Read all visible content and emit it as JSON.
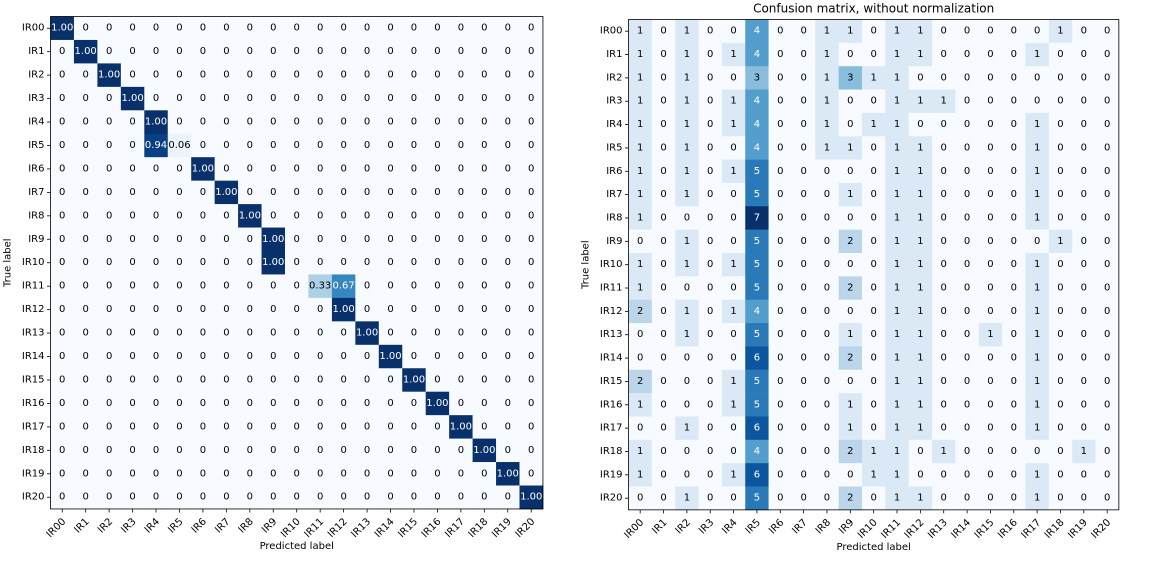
{
  "chart_data": [
    {
      "type": "heatmap",
      "title": "",
      "xlabel": "Predicted label",
      "ylabel": "True label",
      "labels": [
        "IR00",
        "IR1",
        "IR2",
        "IR3",
        "IR4",
        "IR5",
        "IR6",
        "IR7",
        "IR8",
        "IR9",
        "IR10",
        "IR11",
        "IR12",
        "IR13",
        "IR14",
        "IR15",
        "IR16",
        "IR17",
        "IR18",
        "IR19",
        "IR20"
      ],
      "color_scale": {
        "low": "#f7fbff",
        "high": "#08306b"
      },
      "vmax": 1.0,
      "value_format": "normalized",
      "matrix": [
        [
          1,
          0,
          0,
          0,
          0,
          0,
          0,
          0,
          0,
          0,
          0,
          0,
          0,
          0,
          0,
          0,
          0,
          0,
          0,
          0,
          0
        ],
        [
          0,
          1,
          0,
          0,
          0,
          0,
          0,
          0,
          0,
          0,
          0,
          0,
          0,
          0,
          0,
          0,
          0,
          0,
          0,
          0,
          0
        ],
        [
          0,
          0,
          1,
          0,
          0,
          0,
          0,
          0,
          0,
          0,
          0,
          0,
          0,
          0,
          0,
          0,
          0,
          0,
          0,
          0,
          0
        ],
        [
          0,
          0,
          0,
          1,
          0,
          0,
          0,
          0,
          0,
          0,
          0,
          0,
          0,
          0,
          0,
          0,
          0,
          0,
          0,
          0,
          0
        ],
        [
          0,
          0,
          0,
          0,
          1,
          0,
          0,
          0,
          0,
          0,
          0,
          0,
          0,
          0,
          0,
          0,
          0,
          0,
          0,
          0,
          0
        ],
        [
          0,
          0,
          0,
          0,
          0.94,
          0.06,
          0,
          0,
          0,
          0,
          0,
          0,
          0,
          0,
          0,
          0,
          0,
          0,
          0,
          0,
          0
        ],
        [
          0,
          0,
          0,
          0,
          0,
          0,
          1,
          0,
          0,
          0,
          0,
          0,
          0,
          0,
          0,
          0,
          0,
          0,
          0,
          0,
          0
        ],
        [
          0,
          0,
          0,
          0,
          0,
          0,
          0,
          1,
          0,
          0,
          0,
          0,
          0,
          0,
          0,
          0,
          0,
          0,
          0,
          0,
          0
        ],
        [
          0,
          0,
          0,
          0,
          0,
          0,
          0,
          0,
          1,
          0,
          0,
          0,
          0,
          0,
          0,
          0,
          0,
          0,
          0,
          0,
          0
        ],
        [
          0,
          0,
          0,
          0,
          0,
          0,
          0,
          0,
          0,
          1,
          0,
          0,
          0,
          0,
          0,
          0,
          0,
          0,
          0,
          0,
          0
        ],
        [
          0,
          0,
          0,
          0,
          0,
          0,
          0,
          0,
          0,
          1,
          0,
          0,
          0,
          0,
          0,
          0,
          0,
          0,
          0,
          0,
          0
        ],
        [
          0,
          0,
          0,
          0,
          0,
          0,
          0,
          0,
          0,
          0,
          0,
          0.33,
          0.67,
          0,
          0,
          0,
          0,
          0,
          0,
          0,
          0
        ],
        [
          0,
          0,
          0,
          0,
          0,
          0,
          0,
          0,
          0,
          0,
          0,
          0,
          1,
          0,
          0,
          0,
          0,
          0,
          0,
          0,
          0
        ],
        [
          0,
          0,
          0,
          0,
          0,
          0,
          0,
          0,
          0,
          0,
          0,
          0,
          0,
          1,
          0,
          0,
          0,
          0,
          0,
          0,
          0
        ],
        [
          0,
          0,
          0,
          0,
          0,
          0,
          0,
          0,
          0,
          0,
          0,
          0,
          0,
          0,
          1,
          0,
          0,
          0,
          0,
          0,
          0
        ],
        [
          0,
          0,
          0,
          0,
          0,
          0,
          0,
          0,
          0,
          0,
          0,
          0,
          0,
          0,
          0,
          1,
          0,
          0,
          0,
          0,
          0
        ],
        [
          0,
          0,
          0,
          0,
          0,
          0,
          0,
          0,
          0,
          0,
          0,
          0,
          0,
          0,
          0,
          0,
          1,
          0,
          0,
          0,
          0
        ],
        [
          0,
          0,
          0,
          0,
          0,
          0,
          0,
          0,
          0,
          0,
          0,
          0,
          0,
          0,
          0,
          0,
          0,
          1,
          0,
          0,
          0
        ],
        [
          0,
          0,
          0,
          0,
          0,
          0,
          0,
          0,
          0,
          0,
          0,
          0,
          0,
          0,
          0,
          0,
          0,
          0,
          1,
          0,
          0
        ],
        [
          0,
          0,
          0,
          0,
          0,
          0,
          0,
          0,
          0,
          0,
          0,
          0,
          0,
          0,
          0,
          0,
          0,
          0,
          0,
          1,
          0
        ],
        [
          0,
          0,
          0,
          0,
          0,
          0,
          0,
          0,
          0,
          0,
          0,
          0,
          0,
          0,
          0,
          0,
          0,
          0,
          0,
          0,
          1
        ]
      ]
    },
    {
      "type": "heatmap",
      "title": "Confusion matrix, without normalization",
      "xlabel": "Predicted label",
      "ylabel": "True label",
      "labels": [
        "IR00",
        "IR1",
        "IR2",
        "IR3",
        "IR4",
        "IR5",
        "IR6",
        "IR7",
        "IR8",
        "IR9",
        "IR10",
        "IR11",
        "IR12",
        "IR13",
        "IR14",
        "IR15",
        "IR16",
        "IR17",
        "IR18",
        "IR19",
        "IR20"
      ],
      "color_scale": {
        "low": "#f7fbff",
        "high": "#08306b"
      },
      "vmax": 7,
      "value_format": "count",
      "matrix": [
        [
          1,
          0,
          1,
          0,
          0,
          4,
          0,
          0,
          1,
          1,
          0,
          1,
          1,
          0,
          0,
          0,
          0,
          0,
          1,
          0,
          0
        ],
        [
          1,
          0,
          1,
          0,
          1,
          4,
          0,
          0,
          1,
          0,
          0,
          1,
          1,
          0,
          0,
          0,
          0,
          1,
          0,
          0,
          0
        ],
        [
          1,
          0,
          1,
          0,
          0,
          3,
          0,
          0,
          1,
          3,
          1,
          1,
          0,
          0,
          0,
          0,
          0,
          0,
          0,
          0,
          0
        ],
        [
          1,
          0,
          1,
          0,
          1,
          4,
          0,
          0,
          1,
          0,
          0,
          1,
          1,
          1,
          0,
          0,
          0,
          0,
          0,
          0,
          0
        ],
        [
          1,
          0,
          1,
          0,
          1,
          4,
          0,
          0,
          1,
          0,
          1,
          1,
          0,
          0,
          0,
          0,
          0,
          1,
          0,
          0,
          0
        ],
        [
          1,
          0,
          1,
          0,
          0,
          4,
          0,
          0,
          1,
          1,
          0,
          1,
          1,
          0,
          0,
          0,
          0,
          1,
          0,
          0,
          0
        ],
        [
          1,
          0,
          1,
          0,
          1,
          5,
          0,
          0,
          0,
          0,
          0,
          1,
          1,
          0,
          0,
          0,
          0,
          1,
          0,
          0,
          0
        ],
        [
          1,
          0,
          1,
          0,
          0,
          5,
          0,
          0,
          0,
          1,
          0,
          1,
          1,
          0,
          0,
          0,
          0,
          1,
          0,
          0,
          0
        ],
        [
          1,
          0,
          0,
          0,
          0,
          7,
          0,
          0,
          0,
          0,
          0,
          1,
          1,
          0,
          0,
          0,
          0,
          1,
          0,
          0,
          0
        ],
        [
          0,
          0,
          1,
          0,
          0,
          5,
          0,
          0,
          0,
          2,
          0,
          1,
          1,
          0,
          0,
          0,
          0,
          0,
          1,
          0,
          0
        ],
        [
          1,
          0,
          1,
          0,
          1,
          5,
          0,
          0,
          0,
          0,
          0,
          1,
          1,
          0,
          0,
          0,
          0,
          1,
          0,
          0,
          0
        ],
        [
          1,
          0,
          0,
          0,
          0,
          5,
          0,
          0,
          0,
          2,
          0,
          1,
          1,
          0,
          0,
          0,
          0,
          1,
          0,
          0,
          0
        ],
        [
          2,
          0,
          1,
          0,
          1,
          4,
          0,
          0,
          0,
          0,
          0,
          1,
          1,
          0,
          0,
          0,
          0,
          1,
          0,
          0,
          0
        ],
        [
          0,
          0,
          1,
          0,
          0,
          5,
          0,
          0,
          0,
          1,
          0,
          1,
          1,
          0,
          0,
          1,
          0,
          1,
          0,
          0,
          0
        ],
        [
          0,
          0,
          0,
          0,
          0,
          6,
          0,
          0,
          0,
          2,
          0,
          1,
          1,
          0,
          0,
          0,
          0,
          1,
          0,
          0,
          0
        ],
        [
          2,
          0,
          0,
          0,
          1,
          5,
          0,
          0,
          0,
          0,
          0,
          1,
          1,
          0,
          0,
          0,
          0,
          1,
          0,
          0,
          0
        ],
        [
          1,
          0,
          0,
          0,
          1,
          5,
          0,
          0,
          0,
          1,
          0,
          1,
          1,
          0,
          0,
          0,
          0,
          1,
          0,
          0,
          0
        ],
        [
          0,
          0,
          1,
          0,
          0,
          6,
          0,
          0,
          0,
          1,
          0,
          1,
          1,
          0,
          0,
          0,
          0,
          1,
          0,
          0,
          0
        ],
        [
          1,
          0,
          0,
          0,
          0,
          4,
          0,
          0,
          0,
          2,
          1,
          1,
          0,
          1,
          0,
          0,
          0,
          0,
          0,
          1,
          0
        ],
        [
          1,
          0,
          0,
          0,
          1,
          6,
          0,
          0,
          0,
          0,
          1,
          1,
          0,
          0,
          0,
          0,
          0,
          1,
          0,
          0,
          0
        ],
        [
          0,
          0,
          1,
          0,
          0,
          5,
          0,
          0,
          0,
          2,
          0,
          1,
          1,
          0,
          0,
          0,
          0,
          1,
          0,
          0,
          0
        ]
      ]
    }
  ]
}
